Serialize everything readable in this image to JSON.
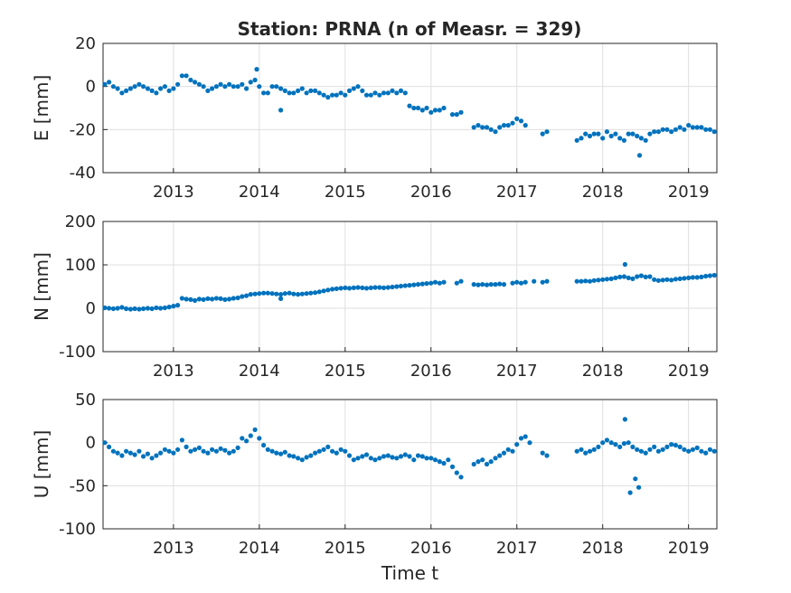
{
  "title": "Station: PRNA (n of Measr. = 329)",
  "colors": {
    "marker": "#0072BD",
    "axis": "#262626",
    "grid": "#dfdfdf"
  },
  "chart_data": [
    {
      "type": "scatter",
      "ylabel": "E [mm]",
      "xlabel": "",
      "xlim": [
        2012.18,
        2019.33
      ],
      "ylim": [
        -40,
        20
      ],
      "yticks": [
        "20",
        "0",
        "-20",
        "-40"
      ],
      "xticks": [
        "2013",
        "2014",
        "2015",
        "2016",
        "2017",
        "2018",
        "2019"
      ],
      "grid": true,
      "series": [
        {
          "x": [
            2012.2,
            2012.25,
            2012.3,
            2012.35,
            2012.4,
            2012.45,
            2012.5,
            2012.55,
            2012.6,
            2012.65,
            2012.7,
            2012.75,
            2012.8,
            2012.85,
            2012.9,
            2012.95,
            2013.0,
            2013.05,
            2013.1,
            2013.15,
            2013.2,
            2013.25,
            2013.3,
            2013.35,
            2013.4,
            2013.45,
            2013.5,
            2013.55,
            2013.6,
            2013.65,
            2013.7,
            2013.75,
            2013.8,
            2013.85,
            2013.9,
            2013.95,
            2014.0,
            2014.05,
            2014.1,
            2014.15,
            2014.2,
            2014.25,
            2014.3,
            2014.35,
            2014.4,
            2014.45,
            2014.5,
            2014.55,
            2014.6,
            2014.65,
            2014.7,
            2014.75,
            2014.8,
            2014.85,
            2014.9,
            2014.95,
            2015.0,
            2015.05,
            2015.1,
            2015.15,
            2015.2,
            2015.25,
            2015.3,
            2015.35,
            2015.4,
            2015.45,
            2015.5,
            2015.55,
            2015.6,
            2015.65,
            2015.7,
            2015.75,
            2015.8,
            2015.85,
            2015.9,
            2015.95,
            2016.0,
            2016.05,
            2016.1,
            2016.15,
            2016.25,
            2016.3,
            2016.35,
            2016.5,
            2016.55,
            2016.6,
            2016.65,
            2016.7,
            2016.75,
            2016.8,
            2016.85,
            2016.9,
            2016.95,
            2017.0,
            2017.05,
            2017.1,
            2017.3,
            2017.35,
            2017.7,
            2017.75,
            2017.8,
            2017.85,
            2017.9,
            2017.95,
            2018.0,
            2018.05,
            2018.1,
            2018.15,
            2018.2,
            2018.25,
            2018.3,
            2018.35,
            2018.4,
            2018.45,
            2018.5,
            2018.55,
            2018.6,
            2018.65,
            2018.7,
            2018.75,
            2018.8,
            2018.85,
            2018.9,
            2018.95,
            2019.0,
            2019.05,
            2019.1,
            2019.15,
            2019.2,
            2019.25,
            2019.3,
            2018.43,
            2013.97,
            2014.25
          ],
          "y": [
            1,
            2,
            0,
            -1,
            -3,
            -2,
            -1,
            0,
            1,
            0,
            -1,
            -2,
            -3,
            -1,
            0,
            -2,
            -1,
            1,
            5,
            5,
            3,
            2,
            1,
            0,
            -2,
            -1,
            0,
            1,
            0,
            1,
            0,
            0,
            1,
            -1,
            2,
            3,
            0,
            -3,
            -3,
            0,
            0,
            -1,
            -2,
            -3,
            -3,
            -2,
            -1,
            -3,
            -2,
            -2,
            -3,
            -4,
            -5,
            -4,
            -4,
            -3,
            -4,
            -2,
            -1,
            0,
            -2,
            -4,
            -4,
            -3,
            -4,
            -3,
            -3,
            -2,
            -3,
            -2,
            -3,
            -9,
            -10,
            -10,
            -11,
            -10,
            -12,
            -11,
            -11,
            -10,
            -13,
            -13,
            -12,
            -19,
            -18,
            -19,
            -19,
            -20,
            -21,
            -19,
            -18,
            -18,
            -17,
            -15,
            -16,
            -18,
            -22,
            -21,
            -25,
            -24,
            -22,
            -23,
            -22,
            -22,
            -24,
            -21,
            -23,
            -22,
            -24,
            -25,
            -22,
            -22,
            -23,
            -24,
            -25,
            -22,
            -21,
            -21,
            -20,
            -20,
            -21,
            -20,
            -19,
            -20,
            -18,
            -19,
            -19,
            -19,
            -20,
            -20,
            -21,
            -32,
            8,
            -11
          ]
        }
      ]
    },
    {
      "type": "scatter",
      "ylabel": "N [mm]",
      "xlabel": "",
      "xlim": [
        2012.18,
        2019.33
      ],
      "ylim": [
        -100,
        200
      ],
      "yticks": [
        "200",
        "100",
        "0",
        "-100"
      ],
      "xticks": [
        "2013",
        "2014",
        "2015",
        "2016",
        "2017",
        "2018",
        "2019"
      ],
      "grid": true,
      "series": [
        {
          "x": [
            2012.2,
            2012.25,
            2012.3,
            2012.35,
            2012.4,
            2012.45,
            2012.5,
            2012.55,
            2012.6,
            2012.65,
            2012.7,
            2012.75,
            2012.8,
            2012.85,
            2012.9,
            2012.95,
            2013.0,
            2013.05,
            2013.1,
            2013.15,
            2013.2,
            2013.25,
            2013.3,
            2013.35,
            2013.4,
            2013.45,
            2013.5,
            2013.55,
            2013.6,
            2013.65,
            2013.7,
            2013.75,
            2013.8,
            2013.85,
            2013.9,
            2013.95,
            2014.0,
            2014.05,
            2014.1,
            2014.15,
            2014.2,
            2014.25,
            2014.3,
            2014.35,
            2014.4,
            2014.45,
            2014.5,
            2014.55,
            2014.6,
            2014.65,
            2014.7,
            2014.75,
            2014.8,
            2014.85,
            2014.9,
            2014.95,
            2015.0,
            2015.05,
            2015.1,
            2015.15,
            2015.2,
            2015.25,
            2015.3,
            2015.35,
            2015.4,
            2015.45,
            2015.5,
            2015.55,
            2015.6,
            2015.65,
            2015.7,
            2015.75,
            2015.8,
            2015.85,
            2015.9,
            2015.95,
            2016.0,
            2016.05,
            2016.1,
            2016.15,
            2016.3,
            2016.35,
            2016.5,
            2016.55,
            2016.6,
            2016.65,
            2016.7,
            2016.75,
            2016.8,
            2016.85,
            2016.95,
            2017.0,
            2017.05,
            2017.1,
            2017.2,
            2017.3,
            2017.35,
            2017.7,
            2017.75,
            2017.8,
            2017.85,
            2017.9,
            2017.95,
            2018.0,
            2018.05,
            2018.1,
            2018.15,
            2018.2,
            2018.25,
            2018.3,
            2018.35,
            2018.4,
            2018.45,
            2018.5,
            2018.55,
            2018.6,
            2018.65,
            2018.7,
            2018.75,
            2018.8,
            2018.85,
            2018.9,
            2018.95,
            2019.0,
            2019.05,
            2019.1,
            2019.15,
            2019.2,
            2019.25,
            2019.3,
            2018.26,
            2014.25
          ],
          "y": [
            1,
            0,
            -1,
            0,
            2,
            -1,
            -2,
            -1,
            -2,
            -1,
            0,
            -1,
            1,
            0,
            1,
            3,
            5,
            7,
            23,
            21,
            20,
            18,
            21,
            20,
            22,
            21,
            23,
            22,
            20,
            21,
            23,
            24,
            27,
            29,
            32,
            33,
            34,
            35,
            35,
            34,
            33,
            32,
            34,
            35,
            33,
            32,
            33,
            34,
            35,
            36,
            38,
            40,
            42,
            44,
            45,
            46,
            47,
            46,
            47,
            48,
            47,
            46,
            47,
            48,
            48,
            47,
            48,
            49,
            50,
            51,
            52,
            53,
            54,
            55,
            56,
            57,
            58,
            60,
            58,
            60,
            58,
            62,
            55,
            54,
            55,
            54,
            55,
            55,
            56,
            55,
            58,
            60,
            58,
            60,
            62,
            60,
            62,
            62,
            62,
            63,
            62,
            64,
            65,
            66,
            67,
            68,
            70,
            72,
            73,
            70,
            68,
            73,
            75,
            72,
            73,
            66,
            64,
            65,
            66,
            65,
            67,
            68,
            69,
            70,
            71,
            71,
            72,
            74,
            75,
            76,
            101,
            22
          ]
        }
      ]
    },
    {
      "type": "scatter",
      "ylabel": "U [mm]",
      "xlabel": "Time t",
      "xlim": [
        2012.18,
        2019.33
      ],
      "ylim": [
        -100,
        50
      ],
      "yticks": [
        "50",
        "0",
        "-50",
        "-100"
      ],
      "xticks": [
        "2013",
        "2014",
        "2015",
        "2016",
        "2017",
        "2018",
        "2019"
      ],
      "grid": true,
      "series": [
        {
          "x": [
            2012.2,
            2012.25,
            2012.3,
            2012.35,
            2012.4,
            2012.45,
            2012.5,
            2012.55,
            2012.6,
            2012.65,
            2012.7,
            2012.75,
            2012.8,
            2012.85,
            2012.9,
            2012.95,
            2013.0,
            2013.05,
            2013.1,
            2013.15,
            2013.2,
            2013.25,
            2013.3,
            2013.35,
            2013.4,
            2013.45,
            2013.5,
            2013.55,
            2013.6,
            2013.65,
            2013.7,
            2013.75,
            2013.8,
            2013.85,
            2013.9,
            2013.95,
            2014.0,
            2014.05,
            2014.1,
            2014.15,
            2014.2,
            2014.25,
            2014.3,
            2014.35,
            2014.4,
            2014.45,
            2014.5,
            2014.55,
            2014.6,
            2014.65,
            2014.7,
            2014.75,
            2014.8,
            2014.85,
            2014.9,
            2014.95,
            2015.0,
            2015.05,
            2015.1,
            2015.15,
            2015.2,
            2015.25,
            2015.3,
            2015.35,
            2015.4,
            2015.45,
            2015.5,
            2015.55,
            2015.6,
            2015.65,
            2015.7,
            2015.75,
            2015.8,
            2015.85,
            2015.9,
            2015.95,
            2016.0,
            2016.05,
            2016.1,
            2016.15,
            2016.2,
            2016.25,
            2016.3,
            2016.35,
            2016.5,
            2016.55,
            2016.6,
            2016.65,
            2016.7,
            2016.75,
            2016.8,
            2016.85,
            2016.9,
            2016.95,
            2017.0,
            2017.05,
            2017.1,
            2017.15,
            2017.3,
            2017.35,
            2017.7,
            2017.75,
            2017.8,
            2017.85,
            2017.9,
            2017.95,
            2018.0,
            2018.05,
            2018.1,
            2018.15,
            2018.2,
            2018.25,
            2018.3,
            2018.35,
            2018.4,
            2018.45,
            2018.5,
            2018.55,
            2018.6,
            2018.65,
            2018.7,
            2018.75,
            2018.8,
            2018.85,
            2018.9,
            2018.95,
            2019.0,
            2019.05,
            2019.1,
            2019.15,
            2019.2,
            2019.25,
            2019.3,
            2018.26,
            2018.32,
            2018.38,
            2018.42
          ],
          "y": [
            0,
            -5,
            -10,
            -12,
            -15,
            -10,
            -12,
            -14,
            -10,
            -16,
            -13,
            -18,
            -15,
            -12,
            -8,
            -10,
            -12,
            -8,
            3,
            -5,
            -10,
            -8,
            -6,
            -10,
            -12,
            -8,
            -10,
            -7,
            -9,
            -12,
            -10,
            -6,
            5,
            2,
            8,
            15,
            5,
            -3,
            -8,
            -10,
            -12,
            -13,
            -11,
            -15,
            -16,
            -18,
            -20,
            -17,
            -15,
            -12,
            -10,
            -8,
            -5,
            -10,
            -12,
            -8,
            -10,
            -15,
            -20,
            -18,
            -16,
            -14,
            -18,
            -20,
            -18,
            -16,
            -15,
            -17,
            -18,
            -16,
            -14,
            -16,
            -20,
            -15,
            -16,
            -18,
            -18,
            -20,
            -22,
            -24,
            -20,
            -28,
            -35,
            -40,
            -25,
            -22,
            -20,
            -25,
            -22,
            -18,
            -15,
            -12,
            -8,
            -10,
            -2,
            5,
            7,
            0,
            -12,
            -15,
            -10,
            -8,
            -12,
            -10,
            -8,
            -5,
            0,
            3,
            0,
            -2,
            -5,
            -1,
            0,
            -5,
            -8,
            -10,
            -12,
            -8,
            -5,
            -10,
            -8,
            -5,
            -2,
            -3,
            -5,
            -8,
            -10,
            -8,
            -6,
            -10,
            -12,
            -8,
            -10,
            27,
            -58,
            -42,
            -52
          ]
        }
      ]
    }
  ]
}
